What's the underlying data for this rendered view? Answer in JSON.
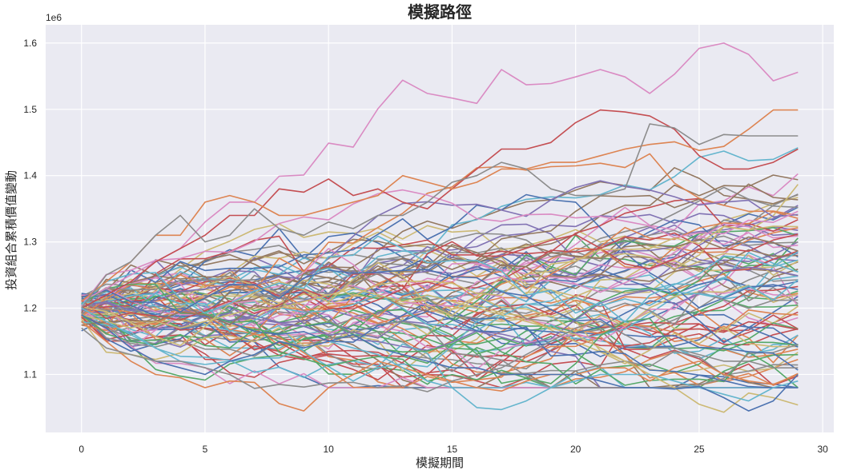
{
  "chart_data": {
    "type": "line",
    "title": "模擬路徑",
    "xlabel": "模擬期間",
    "ylabel": "投資組合累積價值變動",
    "y_offset_label": "1e6",
    "xlim": [
      -1.45,
      30.45
    ],
    "ylim": [
      1.0125,
      1.6276
    ],
    "y_scale": 1000000,
    "xticks": [
      0,
      5,
      10,
      15,
      20,
      25,
      30
    ],
    "xtick_labels": [
      "0",
      "5",
      "10",
      "15",
      "20",
      "25",
      "30"
    ],
    "yticks": [
      1.1,
      1.2,
      1.3,
      1.4,
      1.5,
      1.6
    ],
    "ytick_labels": [
      "1.1",
      "1.2",
      "1.3",
      "1.4",
      "1.5",
      "1.6"
    ],
    "grid": true,
    "background": "#eaeaf2",
    "legend": null,
    "num_paths": 100,
    "num_periods": 30,
    "start_value_approx": 1.2,
    "palette": [
      "#4c72b0",
      "#dd8452",
      "#55a868",
      "#c44e52",
      "#8172b3",
      "#937860",
      "#da8bc3",
      "#8c8c8c",
      "#ccb974",
      "#64b5cd"
    ],
    "highlighted_paths": [
      {
        "name": "highest-path",
        "color": "#da8bc3",
        "x": [
          0,
          1,
          2,
          3,
          4,
          5,
          6,
          7,
          8,
          9,
          10,
          11,
          12,
          13,
          14,
          15,
          16,
          17,
          18,
          19,
          20,
          21,
          22,
          23,
          24,
          25,
          26,
          27,
          28,
          29
        ],
        "values": [
          1.21,
          1.23,
          1.25,
          1.27,
          1.29,
          1.33,
          1.36,
          1.36,
          1.399,
          1.401,
          1.449,
          1.443,
          1.501,
          1.544,
          1.524,
          1.517,
          1.509,
          1.56,
          1.537,
          1.539,
          1.549,
          1.56,
          1.549,
          1.524,
          1.553,
          1.592,
          1.6,
          1.583,
          1.543,
          1.556
        ]
      },
      {
        "name": "second-high-red",
        "color": "#c44e52",
        "x": [
          0,
          1,
          2,
          3,
          4,
          5,
          6,
          7,
          8,
          9,
          10,
          11,
          12,
          13,
          14,
          15,
          16,
          17,
          18,
          19,
          20,
          21,
          22,
          23,
          24,
          25,
          26,
          27,
          28,
          29
        ],
        "values": [
          1.2,
          1.22,
          1.24,
          1.27,
          1.29,
          1.31,
          1.34,
          1.34,
          1.38,
          1.375,
          1.395,
          1.37,
          1.38,
          1.36,
          1.35,
          1.38,
          1.41,
          1.44,
          1.44,
          1.45,
          1.48,
          1.499,
          1.496,
          1.49,
          1.47,
          1.43,
          1.41,
          1.41,
          1.42,
          1.44
        ]
      },
      {
        "name": "orange-rise",
        "color": "#dd8452",
        "x": [
          0,
          1,
          2,
          3,
          4,
          5,
          6,
          7,
          8,
          9,
          10,
          11,
          12,
          13,
          14,
          15,
          16,
          17,
          18,
          19,
          20,
          21,
          22,
          23,
          24,
          25,
          26,
          27,
          28,
          29
        ],
        "values": [
          1.21,
          1.24,
          1.27,
          1.31,
          1.31,
          1.36,
          1.37,
          1.36,
          1.34,
          1.34,
          1.35,
          1.36,
          1.37,
          1.4,
          1.39,
          1.38,
          1.39,
          1.41,
          1.41,
          1.42,
          1.42,
          1.43,
          1.44,
          1.447,
          1.451,
          1.438,
          1.444,
          1.47,
          1.499,
          1.499
        ]
      },
      {
        "name": "gray-high",
        "color": "#8c8c8c",
        "x": [
          0,
          1,
          2,
          3,
          4,
          5,
          6,
          7,
          8,
          9,
          10,
          11,
          12,
          13,
          14,
          15,
          16,
          17,
          18,
          19,
          20,
          21,
          22,
          23,
          24,
          25,
          26,
          27,
          28,
          29
        ],
        "values": [
          1.2,
          1.25,
          1.27,
          1.31,
          1.34,
          1.3,
          1.31,
          1.35,
          1.32,
          1.31,
          1.33,
          1.32,
          1.34,
          1.34,
          1.36,
          1.39,
          1.4,
          1.42,
          1.41,
          1.38,
          1.37,
          1.37,
          1.38,
          1.478,
          1.472,
          1.447,
          1.462,
          1.46,
          1.46,
          1.46
        ]
      },
      {
        "name": "lowest-orange",
        "color": "#dd8452",
        "x": [
          0,
          1,
          2,
          3,
          4,
          5,
          6,
          7,
          8,
          9,
          10,
          11,
          12,
          13,
          14,
          15,
          16,
          17,
          18,
          19,
          20,
          21,
          22,
          23,
          24,
          25,
          26,
          27,
          28,
          29
        ],
        "values": [
          1.18,
          1.15,
          1.12,
          1.1,
          1.095,
          1.08,
          1.09,
          1.088,
          1.056,
          1.045,
          1.08,
          1.1,
          1.12,
          1.11,
          1.1,
          1.09,
          1.08,
          1.075,
          1.09,
          1.1,
          1.1,
          1.11,
          1.11,
          1.09,
          1.11,
          1.12,
          1.1,
          1.09,
          1.085,
          1.1
        ]
      },
      {
        "name": "lowest-yellow",
        "color": "#ccb974",
        "x": [
          0,
          1,
          2,
          3,
          4,
          5,
          6,
          7,
          8,
          9,
          10,
          11,
          12,
          13,
          14,
          15,
          16,
          17,
          18,
          19,
          20,
          21,
          22,
          23,
          24,
          25,
          26,
          27,
          28,
          29
        ],
        "values": [
          1.19,
          1.18,
          1.17,
          1.18,
          1.17,
          1.18,
          1.19,
          1.2,
          1.2,
          1.21,
          1.22,
          1.23,
          1.22,
          1.21,
          1.22,
          1.21,
          1.2,
          1.19,
          1.18,
          1.17,
          1.16,
          1.14,
          1.12,
          1.1,
          1.08,
          1.055,
          1.043,
          1.072,
          1.065,
          1.054
        ]
      },
      {
        "name": "low-cyan",
        "color": "#64b5cd",
        "x": [
          0,
          1,
          2,
          3,
          4,
          5,
          6,
          7,
          8,
          9,
          10,
          11,
          12,
          13,
          14,
          15,
          16,
          17,
          18,
          19,
          20,
          21,
          22,
          23,
          24,
          25,
          26,
          27,
          28,
          29
        ],
        "values": [
          1.2,
          1.18,
          1.16,
          1.14,
          1.12,
          1.115,
          1.12,
          1.124,
          1.125,
          1.14,
          1.15,
          1.14,
          1.13,
          1.11,
          1.09,
          1.08,
          1.05,
          1.047,
          1.06,
          1.08,
          1.09,
          1.1,
          1.1,
          1.1,
          1.09,
          1.08,
          1.07,
          1.06,
          1.08,
          1.09
        ]
      },
      {
        "name": "low-blue",
        "color": "#4c72b0",
        "x": [
          0,
          1,
          2,
          3,
          4,
          5,
          6,
          7,
          8,
          9,
          10,
          11,
          12,
          13,
          14,
          15,
          16,
          17,
          18,
          19,
          20,
          21,
          22,
          23,
          24,
          25,
          26,
          27,
          28,
          29
        ],
        "values": [
          1.19,
          1.17,
          1.14,
          1.12,
          1.11,
          1.1,
          1.12,
          1.13,
          1.15,
          1.14,
          1.15,
          1.16,
          1.14,
          1.13,
          1.12,
          1.11,
          1.11,
          1.1,
          1.1,
          1.1,
          1.1,
          1.09,
          1.08,
          1.08,
          1.078,
          1.082,
          1.065,
          1.045,
          1.06,
          1.1
        ]
      },
      {
        "name": "low-gray",
        "color": "#8c8c8c",
        "x": [
          0,
          1,
          2,
          3,
          4,
          5,
          6,
          7,
          8,
          9,
          10,
          11,
          12,
          13,
          14,
          15,
          16,
          17,
          18,
          19,
          20,
          21,
          22,
          23,
          24,
          25,
          26,
          27,
          28,
          29
        ],
        "values": [
          1.17,
          1.14,
          1.13,
          1.12,
          1.12,
          1.11,
          1.1,
          1.079,
          1.085,
          1.081,
          1.087,
          1.088,
          1.08,
          1.083,
          1.074,
          1.09,
          1.1,
          1.11,
          1.13,
          1.15,
          1.17,
          1.18,
          1.16,
          1.14,
          1.14,
          1.13,
          1.12,
          1.12,
          1.11,
          1.11
        ]
      }
    ]
  }
}
